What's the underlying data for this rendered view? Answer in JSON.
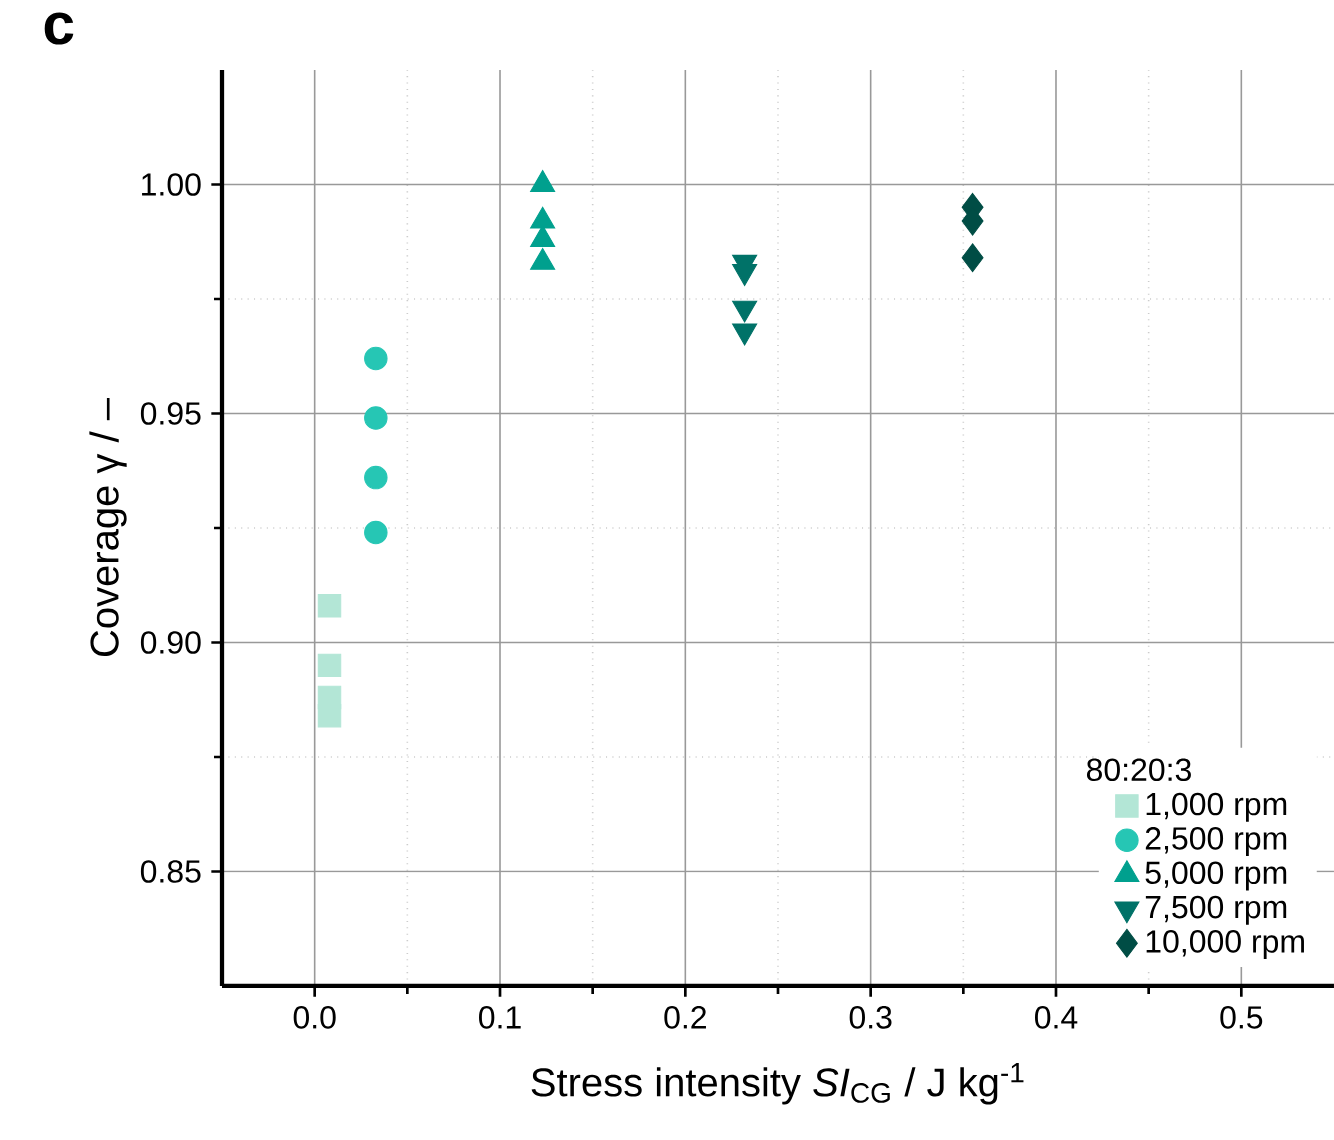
{
  "chart_data": {
    "type": "scatter",
    "title": "c",
    "xlabel": "Stress intensity *SI*$_{CG}$ / J kg$^{-1}$",
    "ylabel": "Coverage γ / –",
    "xlim": [
      -0.05,
      0.55
    ],
    "ylim": [
      0.825,
      1.025
    ],
    "xticks": [
      {
        "value": 0,
        "label": "0.0"
      },
      0.1,
      0.2,
      0.3,
      0.4,
      0.5
    ],
    "yticks": [
      0.85,
      {
        "value": 0.9,
        "label": "0.90"
      },
      0.95,
      {
        "value": 1.0,
        "label": "1.00"
      }
    ],
    "grid": true,
    "legend": "bottom right",
    "legend_title": "80:20:3",
    "series": [
      {
        "name": "1,000 rpm",
        "color": "#b3e6d6",
        "marker": "square",
        "x": [
          0.008,
          0.008,
          0.008,
          0.008
        ],
        "values": [
          0.908,
          0.895,
          0.888,
          0.884
        ]
      },
      {
        "name": "2,500 rpm",
        "color": "#26c6b4",
        "marker": "circle",
        "x": [
          0.033,
          0.033,
          0.033,
          0.033
        ],
        "values": [
          0.962,
          0.949,
          0.936,
          0.924
        ]
      },
      {
        "name": "5,000 rpm",
        "color": "#00a08e",
        "marker": "triangle",
        "x": [
          0.123,
          0.123,
          0.123,
          0.123
        ],
        "values": [
          1.0,
          0.992,
          0.988,
          0.983
        ]
      },
      {
        "name": "7,500 rpm",
        "color": "#007268",
        "marker": "triangle-down",
        "x": [
          0.232,
          0.232,
          0.232,
          0.232
        ],
        "values": [
          0.983,
          0.981,
          0.973,
          0.968
        ]
      },
      {
        "name": "10,000 rpm",
        "color": "#004d45",
        "marker": "diamond",
        "x": [
          0.355,
          0.355,
          0.355
        ],
        "values": [
          0.995,
          0.992,
          0.984
        ]
      }
    ]
  }
}
